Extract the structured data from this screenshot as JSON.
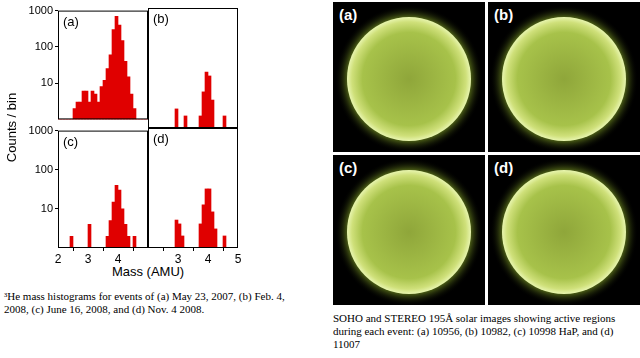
{
  "chart_data": [
    {
      "type": "histogram",
      "annotation": "(a)",
      "bins": [
        2.0,
        2.1,
        2.2,
        2.3,
        2.4,
        2.5,
        2.6,
        2.7,
        2.8,
        2.9,
        3.0,
        3.1,
        3.2,
        3.3,
        3.4,
        3.5,
        3.6,
        3.7,
        3.8,
        3.9,
        4.0,
        4.1,
        4.2,
        4.3,
        4.4,
        4.5,
        4.6,
        4.7,
        4.8,
        4.9,
        5.0
      ],
      "counts": [
        0,
        0,
        0,
        0,
        0,
        2,
        3,
        3,
        6,
        6,
        3,
        6,
        5,
        3,
        8,
        12,
        25,
        60,
        300,
        700,
        400,
        150,
        40,
        15,
        5,
        2,
        0,
        0,
        0,
        0
      ],
      "color": "#e00000",
      "xlim": [
        2,
        5
      ],
      "xticks": [
        2,
        3,
        4,
        5
      ],
      "ylim": [
        1,
        1000
      ],
      "yticks": [
        10,
        100,
        1000
      ],
      "log": "y",
      "grid": false,
      "tick_labels": "y"
    },
    {
      "type": "histogram",
      "annotation": "(b)",
      "bins": [
        2.0,
        2.1,
        2.2,
        2.3,
        2.4,
        2.5,
        2.6,
        2.7,
        2.8,
        2.9,
        3.0,
        3.1,
        3.2,
        3.3,
        3.4,
        3.5,
        3.6,
        3.7,
        3.8,
        3.9,
        4.0,
        4.1,
        4.2,
        4.3,
        4.4,
        4.5,
        4.6,
        4.7,
        4.8,
        4.9,
        5.0
      ],
      "counts": [
        0,
        0,
        0,
        0,
        0,
        0,
        0,
        0,
        0,
        3,
        0,
        0,
        2,
        0,
        0,
        0,
        0,
        2,
        8,
        25,
        20,
        5,
        0,
        0,
        0,
        2,
        0,
        0,
        0,
        0
      ],
      "color": "#e00000",
      "xlim": [
        2,
        5
      ],
      "xticks": [
        2,
        3,
        4,
        5
      ],
      "ylim": [
        1,
        1000
      ],
      "yticks": [
        10,
        100,
        1000
      ],
      "log": "y",
      "grid": false,
      "tick_labels": false
    },
    {
      "type": "histogram",
      "annotation": "(c)",
      "bins": [
        2.0,
        2.1,
        2.2,
        2.3,
        2.4,
        2.5,
        2.6,
        2.7,
        2.8,
        2.9,
        3.0,
        3.1,
        3.2,
        3.3,
        3.4,
        3.5,
        3.6,
        3.7,
        3.8,
        3.9,
        4.0,
        4.1,
        4.2,
        4.3,
        4.4,
        4.5,
        4.6,
        4.7,
        4.8,
        4.9,
        5.0
      ],
      "counts": [
        0,
        0,
        0,
        0,
        2,
        0,
        0,
        0,
        0,
        0,
        4,
        0,
        0,
        0,
        0,
        0,
        2,
        5,
        15,
        40,
        30,
        10,
        4,
        2,
        0,
        2,
        0,
        0,
        0,
        0
      ],
      "color": "#e00000",
      "xlim": [
        2,
        5
      ],
      "xticks": [
        2,
        3,
        4
      ],
      "ylim": [
        1,
        1000
      ],
      "yticks": [
        10,
        100,
        1000
      ],
      "log": "y",
      "grid": false,
      "tick_labels": true
    },
    {
      "type": "histogram",
      "annotation": "(d)",
      "bins": [
        2.0,
        2.1,
        2.2,
        2.3,
        2.4,
        2.5,
        2.6,
        2.7,
        2.8,
        2.9,
        3.0,
        3.1,
        3.2,
        3.3,
        3.4,
        3.5,
        3.6,
        3.7,
        3.8,
        3.9,
        4.0,
        4.1,
        4.2,
        4.3,
        4.4,
        4.5,
        4.6,
        4.7,
        4.8,
        4.9,
        5.0
      ],
      "counts": [
        0,
        0,
        0,
        0,
        0,
        0,
        0,
        0,
        0,
        5,
        4,
        2,
        0,
        0,
        0,
        0,
        0,
        4,
        12,
        30,
        30,
        8,
        3,
        0,
        0,
        2,
        0,
        0,
        0,
        0
      ],
      "color": "#e00000",
      "xlim": [
        2,
        5
      ],
      "xticks": [
        3,
        4,
        5
      ],
      "ylim": [
        1,
        1000
      ],
      "yticks": [
        10,
        100,
        1000
      ],
      "log": "y",
      "grid": false,
      "tick_labels": "x"
    }
  ],
  "shared_axis_labels": {
    "x": "Mass (AMU)",
    "y": "Counts / bin"
  },
  "left_caption": "³He mass histograms for events of (a) May 23, 2007, (b) Feb. 4, 2008, (c) June 16, 2008, and (d) Nov. 4 2008.",
  "image_labels": [
    "(a)",
    "(b)",
    "(c)",
    "(d)"
  ],
  "right_caption": "SOHO and STEREO 195Å solar images showing active regions during each event: (a) 10956, (b) 10982, (c) 10998 HaP, and (d) 11007"
}
